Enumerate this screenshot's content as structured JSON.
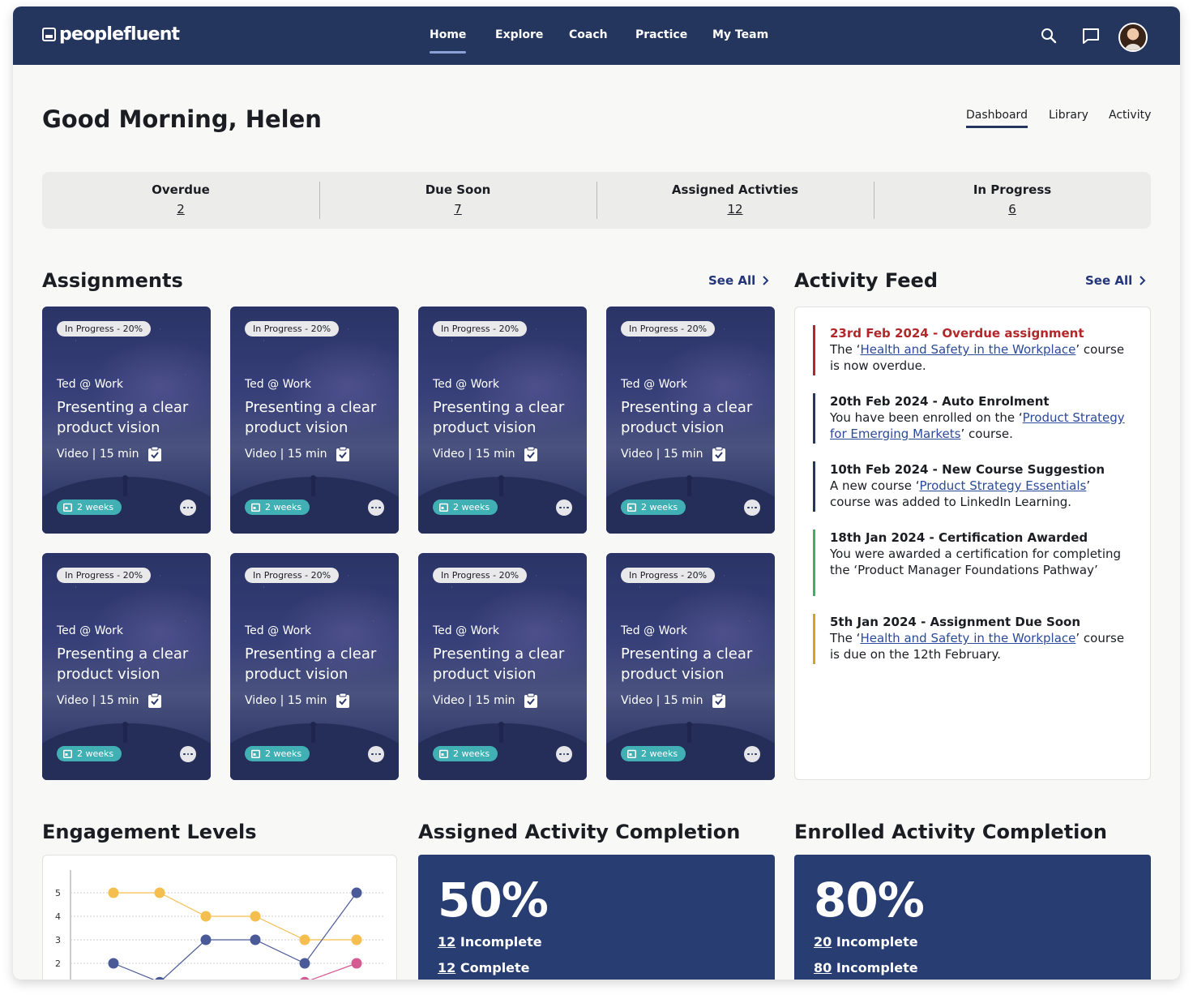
{
  "app": {
    "logo_text": "peoplefluent"
  },
  "nav": {
    "links": [
      "Home",
      "Explore",
      "Coach",
      "Practice",
      "My Team"
    ],
    "active": "Home"
  },
  "header": {
    "greeting": "Good Morning, Helen",
    "tabs": [
      "Dashboard",
      "Library",
      "Activity"
    ],
    "active_tab": "Dashboard"
  },
  "stats": [
    {
      "label": "Overdue",
      "value": "2"
    },
    {
      "label": "Due Soon",
      "value": "7"
    },
    {
      "label": "Assigned Activties",
      "value": "12"
    },
    {
      "label": "In Progress",
      "value": "6"
    }
  ],
  "assignments": {
    "title": "Assignments",
    "see_all": "See All",
    "cards": [
      {
        "status": "In Progress - 20%",
        "author": "Ted @ Work",
        "title": "Presenting a clear product vision",
        "meta": "Video | 15 min",
        "due": "2 weeks"
      },
      {
        "status": "In Progress - 20%",
        "author": "Ted @ Work",
        "title": "Presenting a clear product vision",
        "meta": "Video | 15 min",
        "due": "2 weeks"
      },
      {
        "status": "In Progress - 20%",
        "author": "Ted @ Work",
        "title": "Presenting a clear product vision",
        "meta": "Video | 15 min",
        "due": "2 weeks"
      },
      {
        "status": "In Progress - 20%",
        "author": "Ted @ Work",
        "title": "Presenting a clear product vision",
        "meta": "Video | 15 min",
        "due": "2 weeks"
      },
      {
        "status": "In Progress - 20%",
        "author": "Ted @ Work",
        "title": "Presenting a clear product vision",
        "meta": "Video | 15 min",
        "due": "2 weeks"
      },
      {
        "status": "In Progress - 20%",
        "author": "Ted @ Work",
        "title": "Presenting a clear product vision",
        "meta": "Video | 15 min",
        "due": "2 weeks"
      },
      {
        "status": "In Progress - 20%",
        "author": "Ted @ Work",
        "title": "Presenting a clear product vision",
        "meta": "Video | 15 min",
        "due": "2 weeks"
      },
      {
        "status": "In Progress - 20%",
        "author": "Ted @ Work",
        "title": "Presenting a clear product vision",
        "meta": "Video | 15 min",
        "due": "2 weeks"
      }
    ]
  },
  "activity_feed": {
    "title": "Activity Feed",
    "see_all": "See All",
    "items": [
      {
        "date": "23rd Feb 2024 - Overdue assignment",
        "before": "The ‘",
        "link": "Health and Safety in the Workplace",
        "after": "’ course is now overdue.",
        "color": "#b3262a"
      },
      {
        "date": "20th Feb 2024 - Auto Enrolment",
        "before": "You have been enrolled on the ‘",
        "link": "Product Strategy for Emerging Markets",
        "after": "’ course.",
        "color": "#24355e"
      },
      {
        "date": "10th Feb 2024 - New Course Suggestion",
        "before": "A new course ‘",
        "link": "Product Strategy Essentials",
        "after": "’ course was added to LinkedIn Learning.",
        "color": "#24355e"
      },
      {
        "date": "18th Jan 2024 - Certification Awarded",
        "before": "You were awarded a certification for completing the ‘Product Manager Foundations Pathway’",
        "link": "",
        "after": "",
        "color": "#3fae6a"
      },
      {
        "date": "5th Jan 2024 - Assignment Due Soon",
        "before": "The ‘",
        "link": "Health and Safety in the Workplace",
        "after": "’ course is due on the 12th February.",
        "color": "#d9a02a"
      }
    ]
  },
  "engagement": {
    "title": "Engagement Levels"
  },
  "chart_data": {
    "type": "line",
    "title": "Engagement Levels",
    "x": [
      1,
      2,
      3,
      4,
      5,
      6
    ],
    "yticks": [
      "5",
      "4",
      "3",
      "2"
    ],
    "ylim": [
      1,
      5
    ],
    "grid": true,
    "series": [
      {
        "values": [
          5,
          5,
          4,
          4,
          3,
          3
        ],
        "color": "#f5bf4f"
      },
      {
        "values": [
          2,
          1.2,
          3,
          3,
          2,
          5
        ],
        "color": "#4a5a99"
      },
      {
        "values": [
          null,
          null,
          null,
          null,
          1.2,
          2
        ],
        "color": "#d45a92"
      }
    ]
  },
  "assigned_completion": {
    "title": "Assigned Activity Completion",
    "percent": "50%",
    "rows": [
      {
        "num": "12",
        "label": " Incomplete"
      },
      {
        "num": "12",
        "label": " Complete"
      }
    ]
  },
  "enrolled_completion": {
    "title": "Enrolled Activity Completion",
    "percent": "80%",
    "rows": [
      {
        "num": "20",
        "label": " Incomplete"
      },
      {
        "num": "80",
        "label": " Incomplete"
      }
    ]
  }
}
